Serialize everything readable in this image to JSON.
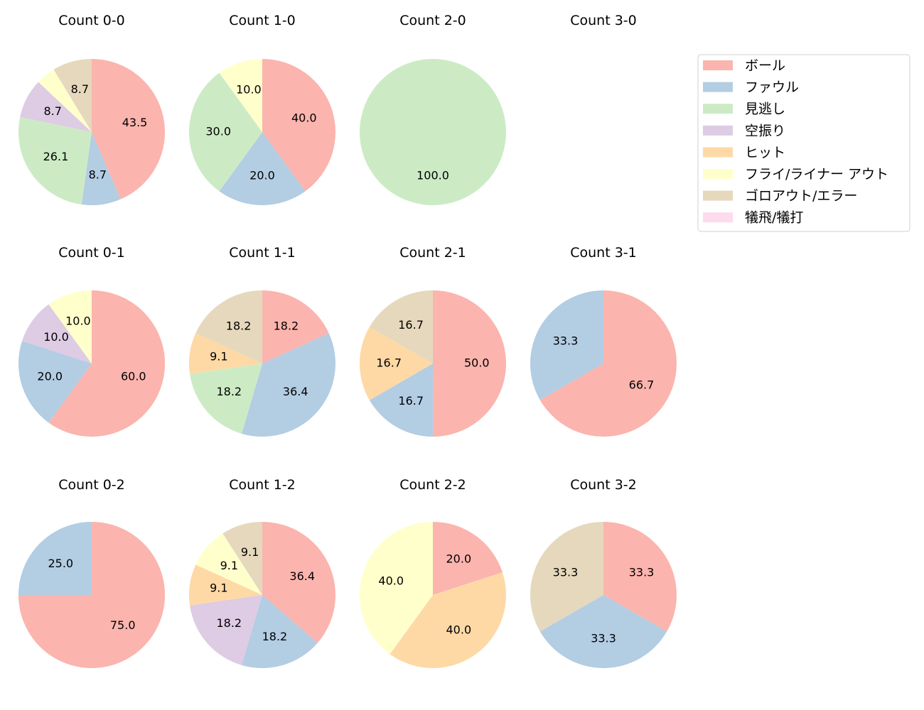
{
  "chart_data": {
    "type": "pie",
    "categories": [
      "ボール",
      "ファウル",
      "見逃し",
      "空振り",
      "ヒット",
      "フライ/ライナー アウト",
      "ゴロアウト/エラー",
      "犠飛/犠打"
    ],
    "colors": [
      "#fbb4ae",
      "#b3cde3",
      "#ccebc5",
      "#decbe4",
      "#fed9a6",
      "#ffffcc",
      "#e5d8bd",
      "#fddaec"
    ],
    "legend_placement": "top-right",
    "start_angle": "top, clockwise",
    "pies": [
      {
        "title": "Count 0-0",
        "values": [
          43.5,
          8.7,
          26.1,
          8.7,
          0,
          4.3,
          8.7,
          0
        ]
      },
      {
        "title": "Count 1-0",
        "values": [
          40.0,
          20.0,
          30.0,
          0,
          0,
          10.0,
          0,
          0
        ]
      },
      {
        "title": "Count 2-0",
        "values": [
          0,
          0,
          100.0,
          0,
          0,
          0,
          0,
          0
        ]
      },
      {
        "title": "Count 3-0",
        "values": [
          0,
          0,
          0,
          0,
          0,
          0,
          0,
          0
        ]
      },
      {
        "title": "Count 0-1",
        "values": [
          60.0,
          20.0,
          0,
          10.0,
          0,
          10.0,
          0,
          0
        ]
      },
      {
        "title": "Count 1-1",
        "values": [
          18.2,
          36.4,
          18.2,
          0,
          9.1,
          0,
          18.2,
          0
        ]
      },
      {
        "title": "Count 2-1",
        "values": [
          50.0,
          16.7,
          0,
          0,
          16.7,
          0,
          16.7,
          0
        ]
      },
      {
        "title": "Count 3-1",
        "values": [
          66.7,
          33.3,
          0,
          0,
          0,
          0,
          0,
          0
        ]
      },
      {
        "title": "Count 0-2",
        "values": [
          75.0,
          25.0,
          0,
          0,
          0,
          0,
          0,
          0
        ]
      },
      {
        "title": "Count 1-2",
        "values": [
          36.4,
          18.2,
          0,
          18.2,
          9.1,
          9.1,
          9.1,
          0
        ]
      },
      {
        "title": "Count 2-2",
        "values": [
          20.0,
          0,
          0,
          0,
          40.0,
          40.0,
          0,
          0
        ]
      },
      {
        "title": "Count 3-2",
        "values": [
          33.3,
          33.3,
          0,
          0,
          0,
          0,
          33.3,
          0
        ]
      }
    ]
  }
}
